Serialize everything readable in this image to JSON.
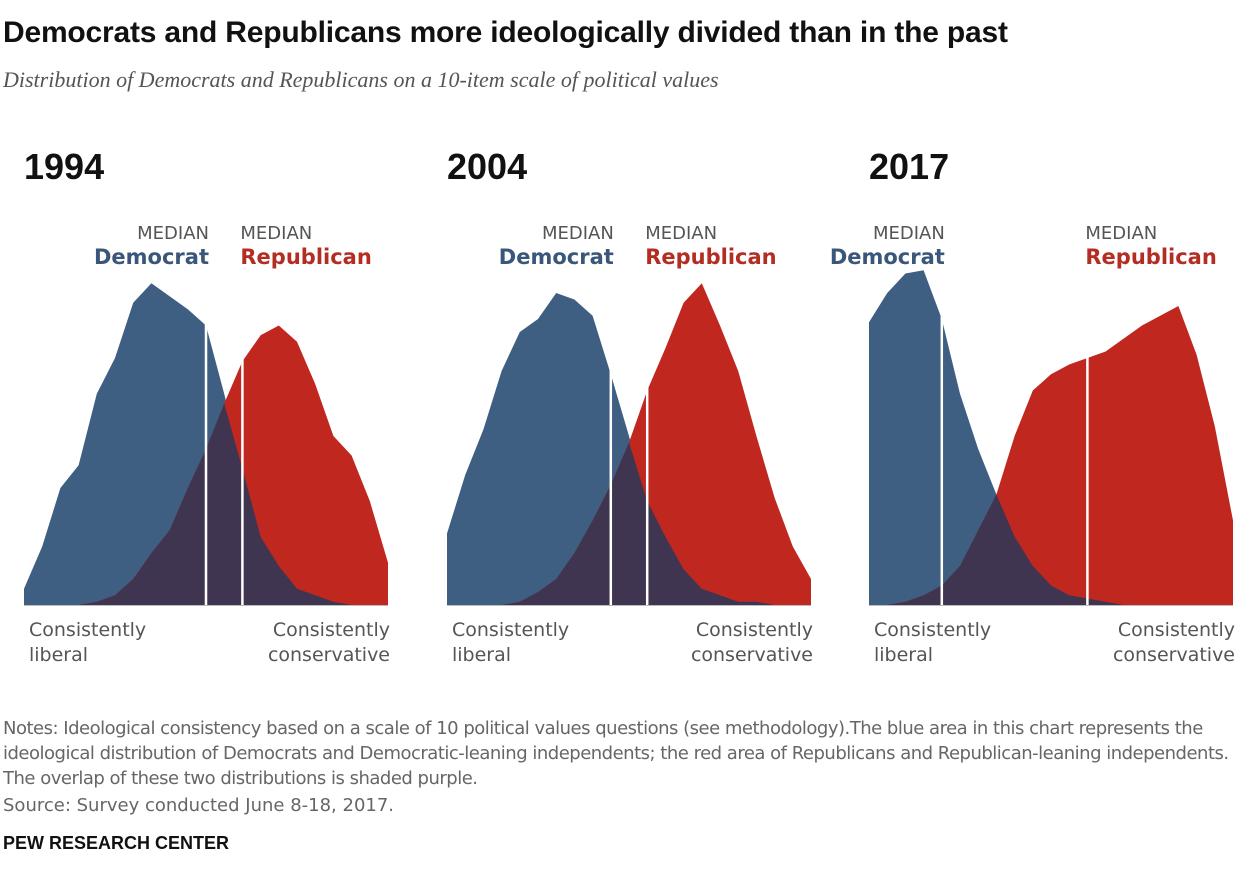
{
  "header": {
    "title": "Democrats and Republicans more ideologically divided than in the past",
    "subtitle": "Distribution of Democrats and Republicans on a 10-item scale of political values"
  },
  "labels": {
    "median_caption": "MEDIAN",
    "democrat": "Democrat",
    "republican": "Republican",
    "left_end": [
      "Consistently",
      "liberal"
    ],
    "right_end": [
      "Consistently",
      "conservative"
    ]
  },
  "colors": {
    "democrat": "#3f5f82",
    "republican": "#c0281f",
    "overlap": "#3f3550",
    "democrat_text": "#3a5779",
    "republican_text": "#b32d22"
  },
  "footer": {
    "notes": "Notes: Ideological consistency based on a scale of 10 political values questions (see methodology).The blue area in this chart represents the ideological distribution of Democrats and Democratic-leaning independents; the red area of Republicans and Republican-leaning independents. The overlap of these two distributions is shaded purple.",
    "source": "Source: Survey conducted June 8-18, 2017.",
    "org": "PEW RESEARCH CENTER"
  },
  "chart_data": [
    {
      "type": "area",
      "title": "1994",
      "x": [
        -10,
        -9,
        -8,
        -7,
        -6,
        -5,
        -4,
        -3,
        -2,
        -1,
        0,
        1,
        2,
        3,
        4,
        5,
        6,
        7,
        8,
        9,
        10
      ],
      "xlim": [
        -10,
        10
      ],
      "ylim": [
        0,
        10
      ],
      "median_democrat": 0,
      "median_republican": 2,
      "series": [
        {
          "name": "Democrat",
          "values": [
            0.5,
            1.8,
            3.6,
            4.3,
            6.5,
            7.6,
            9.3,
            9.9,
            9.5,
            9.1,
            8.6,
            6.5,
            4.2,
            2.1,
            1.2,
            0.5,
            0.3,
            0.1,
            0.0,
            0.0,
            0.0
          ]
        },
        {
          "name": "Republican",
          "values": [
            0.0,
            0.0,
            0.0,
            0.0,
            0.1,
            0.3,
            0.8,
            1.6,
            2.3,
            3.6,
            4.8,
            6.2,
            7.5,
            8.3,
            8.6,
            8.1,
            6.8,
            5.2,
            4.6,
            3.2,
            1.3
          ]
        }
      ]
    },
    {
      "type": "area",
      "title": "2004",
      "x": [
        -10,
        -9,
        -8,
        -7,
        -6,
        -5,
        -4,
        -3,
        -2,
        -1,
        0,
        1,
        2,
        3,
        4,
        5,
        6,
        7,
        8,
        9,
        10
      ],
      "xlim": [
        -10,
        10
      ],
      "ylim": [
        0,
        10
      ],
      "median_democrat": -1,
      "median_republican": 1,
      "series": [
        {
          "name": "Democrat",
          "values": [
            2.2,
            4.0,
            5.4,
            7.2,
            8.4,
            8.8,
            9.6,
            9.4,
            8.9,
            7.1,
            5.2,
            3.2,
            2.1,
            1.1,
            0.5,
            0.3,
            0.1,
            0.1,
            0.0,
            0.0,
            0.0
          ]
        },
        {
          "name": "Republican",
          "values": [
            0.0,
            0.0,
            0.0,
            0.0,
            0.1,
            0.4,
            0.8,
            1.6,
            2.6,
            3.7,
            5.0,
            6.6,
            7.9,
            9.3,
            9.9,
            8.6,
            7.2,
            5.2,
            3.3,
            1.8,
            0.8
          ]
        }
      ]
    },
    {
      "type": "area",
      "title": "2017",
      "x": [
        -10,
        -9,
        -8,
        -7,
        -6,
        -5,
        -4,
        -3,
        -2,
        -1,
        0,
        1,
        2,
        3,
        4,
        5,
        6,
        7,
        8,
        9,
        10
      ],
      "xlim": [
        -10,
        10
      ],
      "ylim": [
        0,
        10
      ],
      "median_democrat": -6,
      "median_republican": 2,
      "series": [
        {
          "name": "Democrat",
          "values": [
            8.7,
            9.6,
            10.2,
            10.3,
            8.8,
            6.5,
            4.8,
            3.4,
            2.1,
            1.2,
            0.6,
            0.3,
            0.2,
            0.1,
            0.0,
            0.0,
            0.0,
            0.0,
            0.0,
            0.0,
            0.0
          ]
        },
        {
          "name": "Republican",
          "values": [
            0.0,
            0.0,
            0.1,
            0.3,
            0.6,
            1.2,
            2.3,
            3.4,
            5.2,
            6.6,
            7.1,
            7.4,
            7.6,
            7.8,
            8.2,
            8.6,
            8.9,
            9.2,
            7.7,
            5.5,
            2.6
          ]
        }
      ]
    }
  ]
}
